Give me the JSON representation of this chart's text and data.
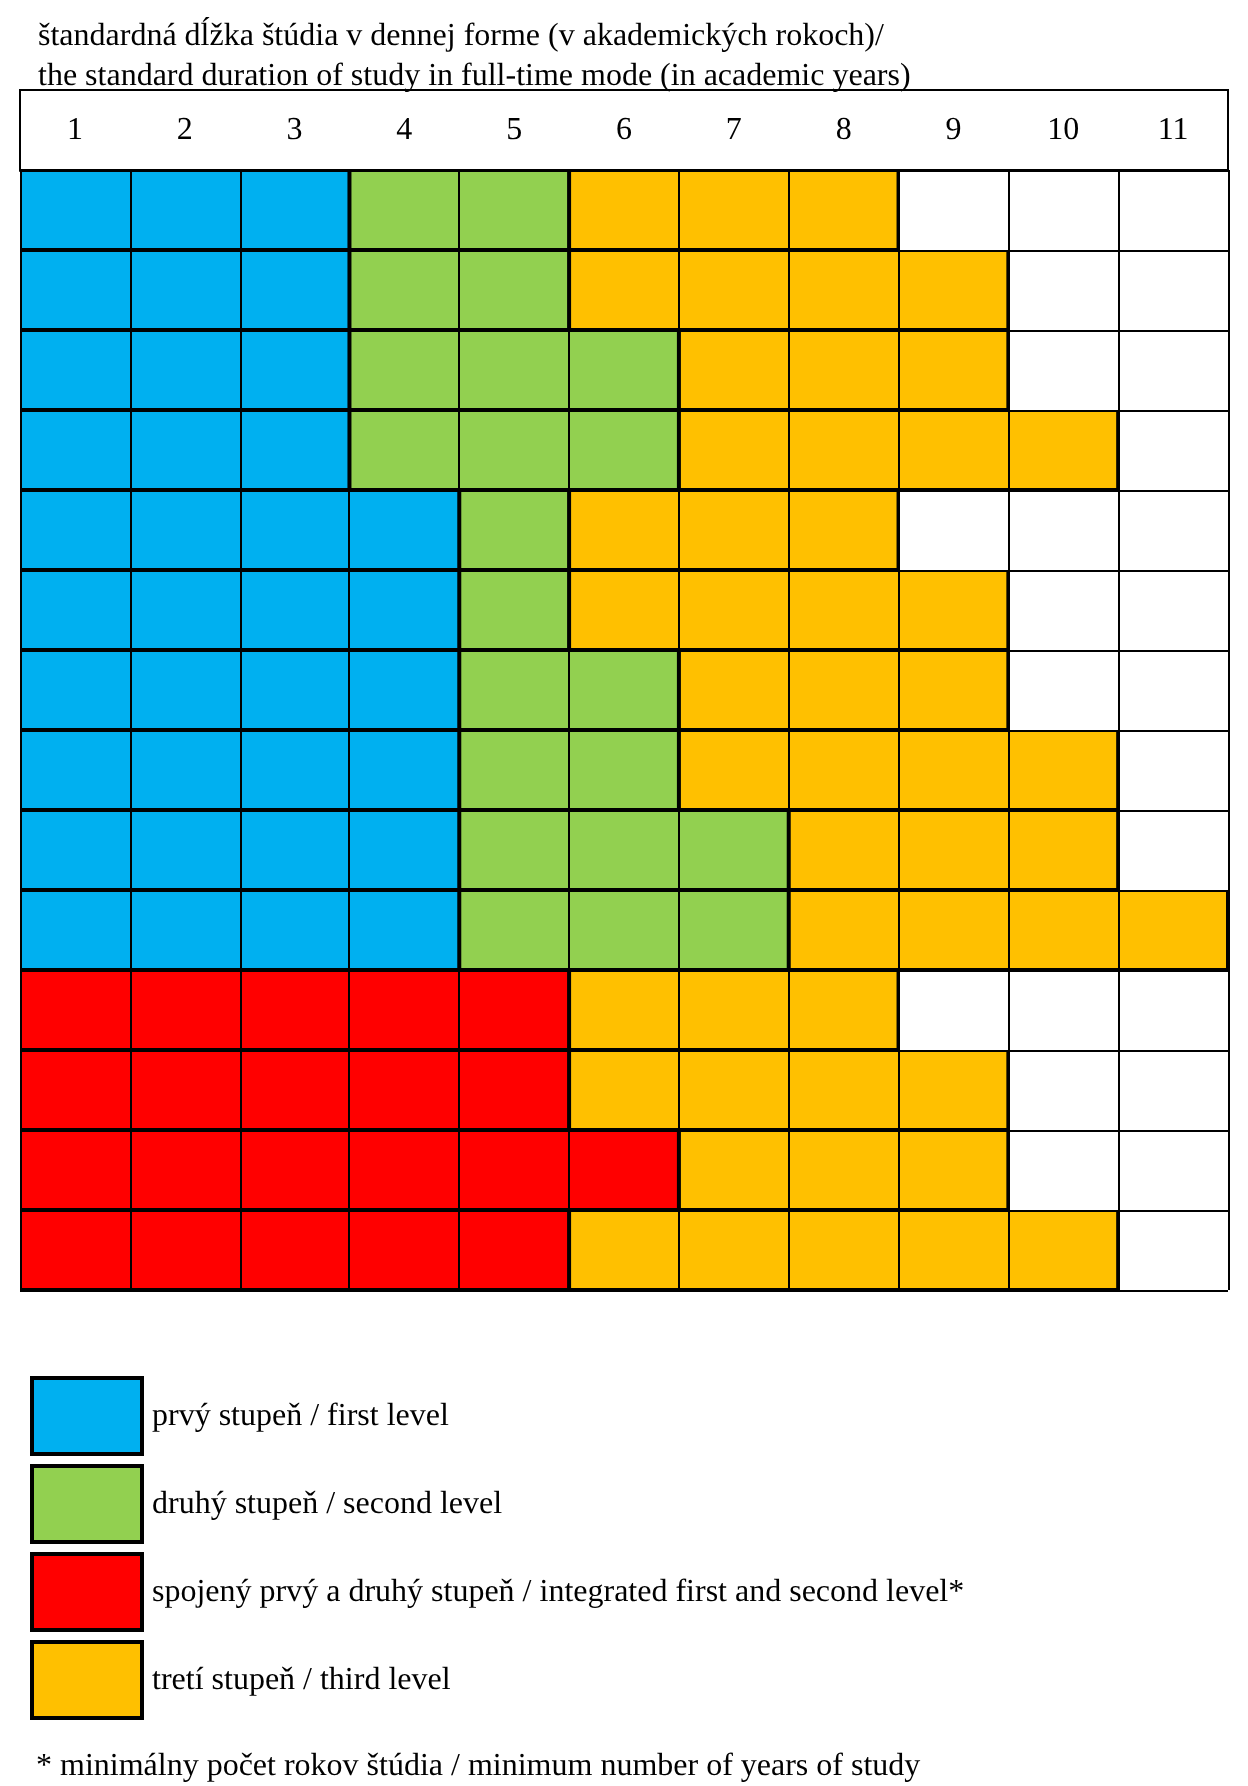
{
  "chart_data": {
    "type": "bar",
    "orientation": "horizontal",
    "title": "štandardná dĺžka štúdia v dennej forme (v akademických rokoch)/\nthe standard duration of study in full-time mode (in academic years)",
    "categories": [
      null,
      null,
      null,
      null,
      null,
      null,
      null,
      null,
      null,
      null,
      null,
      null,
      null,
      null
    ],
    "series": [
      {
        "name": "prvý stupeň / first level",
        "color": "#00b0f0",
        "values": [
          3,
          3,
          3,
          3,
          4,
          4,
          4,
          4,
          4,
          4,
          null,
          null,
          null,
          null
        ]
      },
      {
        "name": "druhý stupeň / second level",
        "color": "#92d050",
        "values": [
          2,
          2,
          3,
          3,
          1,
          1,
          2,
          2,
          3,
          3,
          null,
          null,
          null,
          null
        ]
      },
      {
        "name": "spojený prvý a druhý stupeň / integrated first and second level*",
        "color": "#ff0000",
        "values": [
          null,
          null,
          null,
          null,
          null,
          null,
          null,
          null,
          null,
          null,
          5,
          5,
          6,
          5
        ]
      },
      {
        "name": "tretí stupeň / third level",
        "color": "#ffc000",
        "values": [
          3,
          4,
          3,
          4,
          3,
          4,
          3,
          4,
          3,
          4,
          3,
          4,
          3,
          5
        ]
      }
    ],
    "stacked": true,
    "xlim": [
      0,
      11
    ],
    "xticks": [
      {
        "value": 0,
        "label": null
      },
      {
        "value": 0.5,
        "label": "1"
      },
      {
        "value": 1,
        "label": null
      },
      {
        "value": 1.5,
        "label": "2"
      },
      {
        "value": 2,
        "label": null
      },
      {
        "value": 2.5,
        "label": "3"
      },
      {
        "value": 3,
        "label": null
      },
      {
        "value": 3.5,
        "label": "4"
      },
      {
        "value": 4,
        "label": null
      },
      {
        "value": 4.5,
        "label": "5"
      },
      {
        "value": 5,
        "label": null
      },
      {
        "value": 5.5,
        "label": "6"
      },
      {
        "value": 6,
        "label": null
      },
      {
        "value": 6.5,
        "label": "7"
      },
      {
        "value": 7,
        "label": null
      },
      {
        "value": 7.5,
        "label": "8"
      },
      {
        "value": 8,
        "label": null
      },
      {
        "value": 8.5,
        "label": "9"
      },
      {
        "value": 9,
        "label": null
      },
      {
        "value": 9.5,
        "label": "10"
      },
      {
        "value": 10,
        "label": null
      },
      {
        "value": 10.5,
        "label": "11"
      },
      {
        "value": 11,
        "label": null
      }
    ],
    "grid": true,
    "legend": "bottom left",
    "annotations": [
      "* minimálny počet rokov štúdia / minimum number of years of study"
    ]
  }
}
